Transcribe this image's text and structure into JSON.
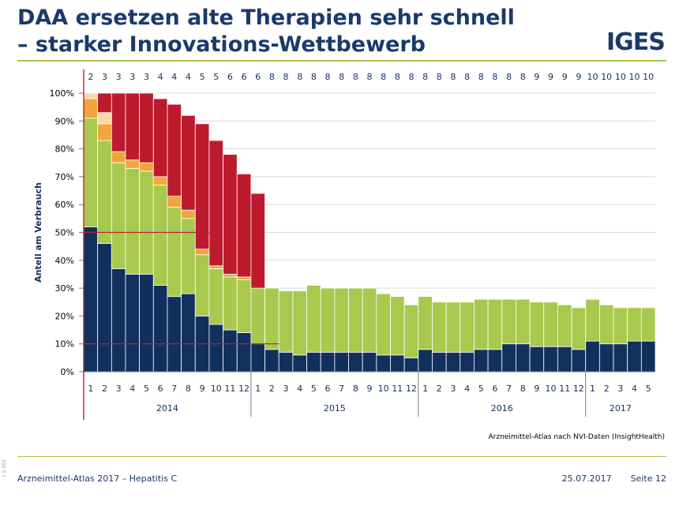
{
  "slide": {
    "title_line1": "DAA ersetzen alte Therapien sehr schnell",
    "title_line2": "– starker Innovations-Wettbewerb",
    "logo": "IGES",
    "source": "Arzneimittel-Atlas nach NVI-Daten (InsightHealth)",
    "footer_left": "Arzneimittel-Atlas 2017 – Hepatitis C",
    "footer_date": "25.07.2017",
    "footer_page": "Seite 12",
    "side_code": "1.5.002"
  },
  "colors": {
    "title": "#1b3a6b",
    "accent_rule": "#a6c44a",
    "reference_line": "#b5253b",
    "series": [
      "#12305e",
      "#a9c84e",
      "#f0a63a",
      "#f6d9a8",
      "#bd1a2e",
      "#cdd3b8",
      "#4a8fde"
    ]
  },
  "chart_data": {
    "type": "bar",
    "stacked": true,
    "ylabel": "Anteil am Verbrauch",
    "ylim": [
      0,
      100
    ],
    "yticks": [
      "0%",
      "10%",
      "20%",
      "30%",
      "40%",
      "50%",
      "60%",
      "70%",
      "80%",
      "90%",
      "100%"
    ],
    "grid": true,
    "reference_lines": [
      50,
      10
    ],
    "categories": [
      "1",
      "2",
      "3",
      "4",
      "5",
      "6",
      "7",
      "8",
      "9",
      "10",
      "11",
      "12",
      "1",
      "2",
      "3",
      "4",
      "5",
      "6",
      "7",
      "8",
      "9",
      "10",
      "11",
      "12",
      "1",
      "2",
      "3",
      "4",
      "5",
      "6",
      "7",
      "8",
      "9",
      "10",
      "11",
      "12",
      "1",
      "2",
      "3",
      "4",
      "5"
    ],
    "years": [
      {
        "label": "2014",
        "count": 12
      },
      {
        "label": "2015",
        "count": 12
      },
      {
        "label": "2016",
        "count": 12
      },
      {
        "label": "2017",
        "count": 5
      }
    ],
    "top_labels": [
      "2",
      "3",
      "3",
      "3",
      "3",
      "4",
      "4",
      "4",
      "5",
      "5",
      "6",
      "6",
      "6",
      "8",
      "8",
      "8",
      "8",
      "8",
      "8",
      "8",
      "8",
      "8",
      "8",
      "8",
      "8",
      "8",
      "8",
      "8",
      "8",
      "8",
      "8",
      "8",
      "9",
      "9",
      "9",
      "9",
      "10",
      "10",
      "10",
      "10",
      "10"
    ],
    "series": [
      {
        "values": [
          52,
          46,
          37,
          35,
          35,
          31,
          27,
          28,
          20,
          17,
          15,
          14,
          10,
          8,
          7,
          6,
          7,
          7,
          7,
          7,
          7,
          6,
          6,
          5,
          8,
          7,
          7,
          7,
          8,
          8,
          10,
          10,
          9,
          9,
          9,
          8,
          11,
          10,
          10,
          11,
          11
        ]
      },
      {
        "values": [
          39,
          37,
          38,
          38,
          37,
          36,
          32,
          27,
          22,
          20,
          19,
          19,
          20,
          22,
          22,
          23,
          24,
          23,
          23,
          23,
          23,
          22,
          21,
          19,
          19,
          18,
          18,
          18,
          18,
          18,
          16,
          16,
          16,
          16,
          15,
          15,
          15,
          14,
          13,
          12,
          12
        ]
      },
      {
        "values": [
          7,
          6,
          4,
          3,
          3,
          3,
          4,
          3,
          2,
          1,
          1,
          1,
          0,
          0,
          0,
          0,
          0,
          0,
          0,
          0,
          0,
          0,
          0,
          0,
          0,
          0,
          0,
          0,
          0,
          0,
          0,
          0,
          0,
          0,
          0,
          0,
          0,
          0,
          0,
          0,
          0
        ]
      },
      {
        "values": [
          2,
          4,
          0,
          0,
          0,
          0,
          0,
          0,
          0,
          0,
          0,
          0,
          0,
          0,
          0,
          0,
          0,
          0,
          0,
          0,
          0,
          0,
          0,
          0,
          0,
          0,
          0,
          0,
          0,
          0,
          0,
          0,
          0,
          0,
          0,
          0,
          0,
          0,
          0,
          0,
          0
        ]
      },
      {
        "values": [
          0,
          7,
          21,
          24,
          25,
          28,
          33,
          34,
          45,
          45,
          43,
          37,
          34,
          0,
          0,
          0,
          0,
          0,
          0,
          0,
          0,
          0,
          0,
          0,
          0,
          0,
          0,
          0,
          0,
          0,
          0,
          0,
          0,
          0,
          0,
          0,
          0,
          0,
          0,
          0,
          0
        ]
      },
      {
        "values": [
          0,
          0,
          0,
          0,
          0,
          0,
          0,
          0,
          0,
          0,
          0,
          0,
          0,
          0,
          0,
          0,
          0,
          0,
          0,
          0,
          0,
          0,
          0,
          0,
          0,
          0,
          0,
          0,
          0,
          0,
          0,
          0,
          0,
          0,
          0,
          0,
          0,
          0,
          0,
          0,
          0
        ]
      },
      {
        "values": [
          0,
          0,
          0,
          0,
          0,
          0,
          0,
          0,
          0,
          0,
          0,
          0,
          0,
          0,
          0,
          0,
          0,
          0,
          0,
          0,
          0,
          0,
          0,
          0,
          0,
          0,
          0,
          0,
          0,
          0,
          0,
          0,
          0,
          0,
          0,
          0,
          0,
          0,
          0,
          0,
          0
        ]
      }
    ]
  }
}
